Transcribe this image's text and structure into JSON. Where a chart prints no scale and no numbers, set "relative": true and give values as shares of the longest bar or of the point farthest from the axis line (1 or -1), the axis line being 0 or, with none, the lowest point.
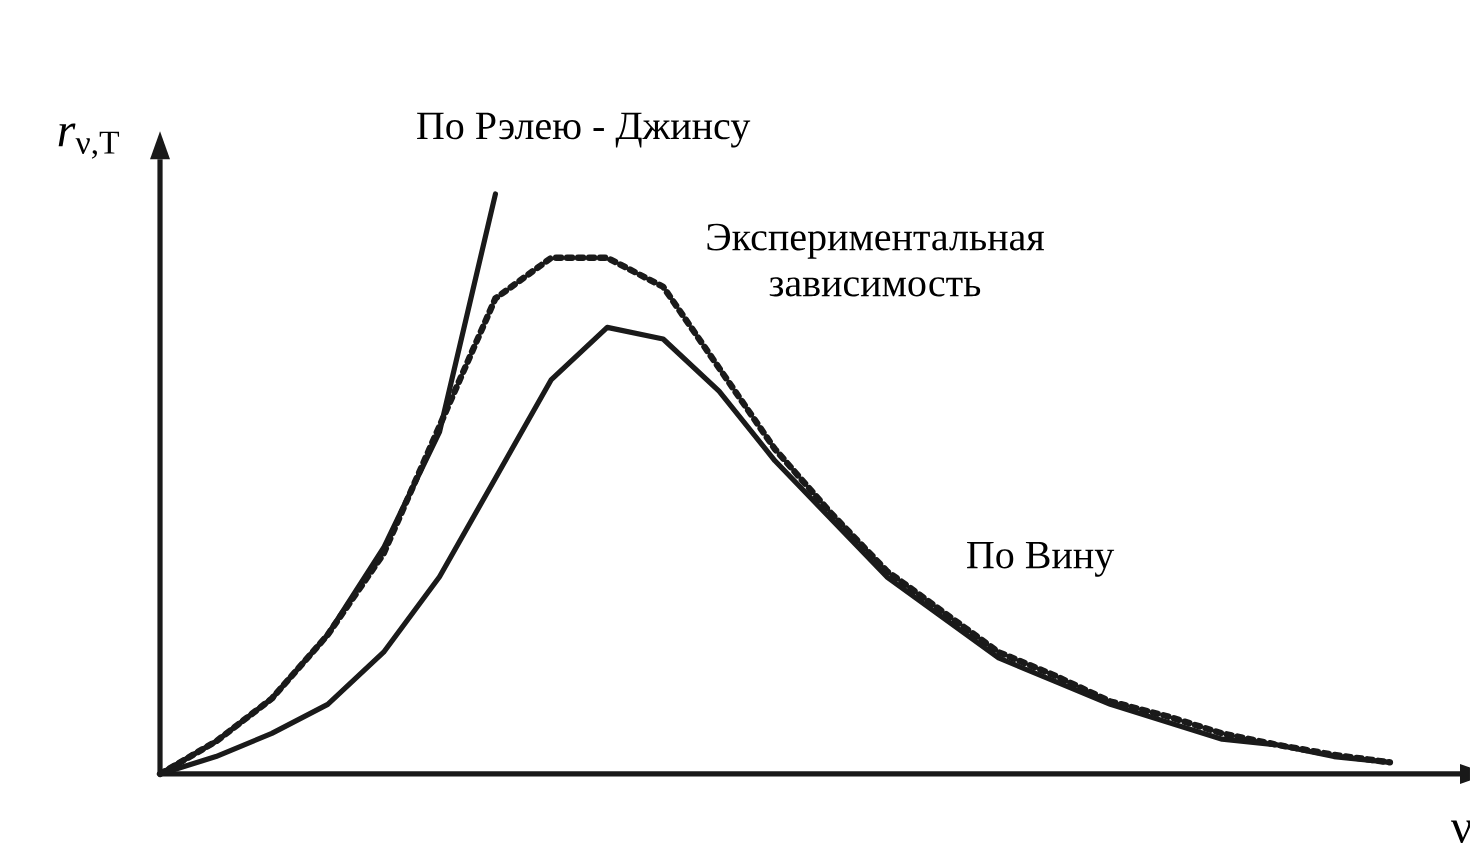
{
  "chart_data": {
    "type": "line",
    "relative": true,
    "xlabel": "ν",
    "ylabel": "*r*$_{ν,T}$",
    "marker": "none",
    "categories": [
      null,
      null,
      null,
      null,
      null,
      null,
      null,
      null,
      null,
      null,
      null,
      null,
      null,
      null,
      null,
      null,
      null,
      null,
      null,
      null,
      null,
      null,
      null
    ],
    "series": [
      {
        "name": "По Рэлею - Джинсу",
        "color": "#1a1a1a",
        "line_style": "solid",
        "values": [
          0,
          0.056,
          0.13,
          0.24,
          0.39,
          0.59,
          1.0,
          null,
          null,
          null,
          null,
          null,
          null,
          null,
          null,
          null,
          null,
          null,
          null,
          null,
          null,
          null,
          null
        ]
      },
      {
        "name": "Экспериментальная зависимость",
        "color": "#1a1a1a",
        "line_style": "dotted",
        "values": [
          0,
          0.056,
          0.13,
          0.24,
          0.38,
          0.6,
          0.82,
          0.89,
          0.89,
          0.84,
          0.7,
          0.56,
          0.45,
          0.35,
          0.28,
          0.21,
          0.17,
          0.125,
          0.1,
          0.07,
          0.05,
          0.033,
          0.02
        ]
      },
      {
        "name": "По Вину",
        "color": "#1a1a1a",
        "line_style": "solid",
        "values": [
          0,
          0.03,
          0.07,
          0.12,
          0.21,
          0.34,
          0.51,
          0.68,
          0.77,
          0.75,
          0.66,
          0.54,
          0.44,
          0.34,
          0.27,
          0.2,
          0.16,
          0.12,
          0.09,
          0.06,
          0.05,
          0.03,
          0.02
        ]
      }
    ]
  }
}
